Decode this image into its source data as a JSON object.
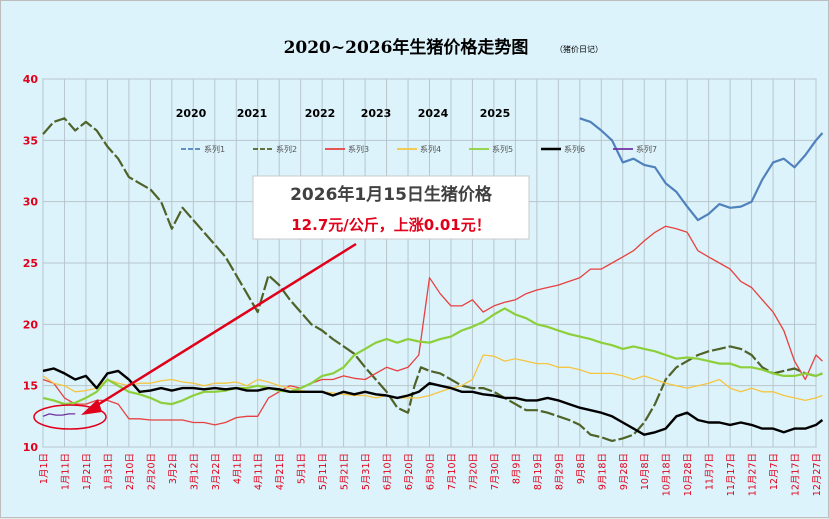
{
  "header": {
    "title": "2020~2026年生猪价格走势图",
    "subtitle": "（猪价日记）"
  },
  "colors": {
    "background": "#dcf3fb",
    "axis_text": "#e0001a",
    "series": [
      "#4f81bd",
      "#4f6228",
      "#e6413f",
      "#f5c542",
      "#8ccf3a",
      "#000000",
      "#7030a0"
    ]
  },
  "year_labels": [
    "2020",
    "2021",
    "2022",
    "2023",
    "2024",
    "2025"
  ],
  "legend": [
    "系列1",
    "系列2",
    "系列3",
    "系列4",
    "系列5",
    "系列6",
    "系列7"
  ],
  "annotation": {
    "line1": "2026年1月15日生猪价格",
    "line2": "12.7元/公斤，上涨0.01元！"
  },
  "chart_data": {
    "type": "line",
    "title": "2020~2026年生猪价格走势图",
    "subtitle": "（猪价日记）",
    "ylim": [
      10,
      40
    ],
    "y_ticks": [
      "10",
      "15",
      "20",
      "25",
      "30",
      "35",
      "40"
    ],
    "x_ticks": [
      "1月1日",
      "1月11日",
      "1月21日",
      "1月31日",
      "2月10日",
      "2月20日",
      "3月2日",
      "3月12日",
      "3月22日",
      "4月1日",
      "4月11日",
      "4月21日",
      "5月1日",
      "5月11日",
      "5月21日",
      "5月31日",
      "6月10日",
      "6月20日",
      "6月30日",
      "7月10日",
      "7月20日",
      "7月30日",
      "8月9日",
      "8月19日",
      "8月29日",
      "9月8日",
      "9月18日",
      "9月28日",
      "10月8日",
      "10月18日",
      "10月28日",
      "11月7日",
      "11月17日",
      "11月27日",
      "12月7日",
      "12月17日",
      "12月27日"
    ],
    "grid": true,
    "legend_position": "top",
    "series": [
      {
        "name": "系列1",
        "year": "2020",
        "dash": true,
        "x": [
          0,
          3,
          6,
          9,
          12,
          15,
          18,
          21,
          24,
          27,
          30,
          33,
          36
        ],
        "values": [
          null,
          null,
          null,
          null,
          null,
          null,
          null,
          null,
          null,
          null,
          null,
          null,
          null
        ]
      },
      {
        "name": "系列1",
        "x": [
          25,
          25.5,
          26,
          26.5,
          27,
          27.5,
          28,
          28.5,
          29,
          29.5,
          30,
          30.5,
          31,
          31.5,
          32,
          32.5,
          33,
          33.5,
          34,
          34.5,
          35,
          35.5,
          36,
          36.3
        ],
        "values": [
          36.8,
          36.5,
          35.8,
          35.0,
          33.2,
          33.5,
          33.0,
          32.8,
          31.5,
          30.8,
          29.6,
          28.5,
          29.0,
          29.8,
          29.5,
          29.6,
          30.0,
          31.8,
          33.2,
          33.5,
          32.8,
          33.8,
          35.0,
          35.6
        ]
      },
      {
        "name": "系列2",
        "x": [
          0,
          0.5,
          1,
          1.5,
          2,
          2.5,
          3,
          3.5,
          4,
          4.5,
          5,
          5.5,
          6,
          6.5,
          7,
          7.5,
          8,
          8.5,
          9,
          9.5,
          10,
          10.5,
          11,
          11.5,
          12,
          12.5,
          13,
          13.5,
          14,
          14.5,
          15,
          15.5,
          16,
          16.5,
          17,
          17.3,
          17.6,
          18,
          18.5,
          19,
          19.5,
          20,
          20.5,
          21,
          21.5,
          22,
          22.5,
          23,
          23.5,
          24,
          24.5,
          25,
          25.5,
          26,
          26.5,
          27,
          27.5,
          28,
          28.5,
          29,
          29.5,
          30,
          30.5,
          31,
          31.5,
          32,
          32.5,
          33,
          33.5,
          34,
          34.5,
          35,
          35.5,
          36,
          36.3
        ],
        "values": [
          35.5,
          36.5,
          36.8,
          35.8,
          36.5,
          35.8,
          34.5,
          33.5,
          32.0,
          31.5,
          31.0,
          30.0,
          27.8,
          29.5,
          28.5,
          27.5,
          26.5,
          25.5,
          24.0,
          22.5,
          21.0,
          24.0,
          23.2,
          22.0,
          21.0,
          20.0,
          19.5,
          18.8,
          18.2,
          17.6,
          16.5,
          15.5,
          14.5,
          13.2,
          12.8,
          15.0,
          16.5,
          16.2,
          16.0,
          15.5,
          15.0,
          14.8,
          14.8,
          14.5,
          14.0,
          13.5,
          13.0,
          13.0,
          12.8,
          12.5,
          12.2,
          11.8,
          11.0,
          10.8,
          10.5,
          10.7,
          11.0,
          12.0,
          13.5,
          15.5,
          16.5,
          17.0,
          17.5,
          17.8,
          18.0,
          18.2,
          18.0,
          17.5,
          16.5,
          16.0,
          16.2,
          16.4,
          16.0,
          15.8,
          16.0
        ]
      },
      {
        "name": "系列3",
        "x": [
          0,
          0.5,
          1,
          1.5,
          2,
          2.5,
          3,
          3.5,
          4,
          4.5,
          5,
          5.5,
          6,
          6.5,
          7,
          7.5,
          8,
          8.5,
          9,
          9.5,
          10,
          10.5,
          11,
          11.5,
          12,
          12.5,
          13,
          13.5,
          14,
          14.5,
          15,
          15.5,
          16,
          16.5,
          17,
          17.5,
          18,
          18.5,
          19,
          19.5,
          20,
          20.5,
          21,
          21.5,
          22,
          22.5,
          23,
          23.5,
          24,
          24.5,
          25,
          25.5,
          26,
          26.5,
          27,
          27.5,
          28,
          28.5,
          29,
          29.5,
          30,
          30.5,
          31,
          31.5,
          32,
          32.5,
          33,
          33.5,
          34,
          34.5,
          35,
          35.5,
          36,
          36.3
        ],
        "values": [
          15.5,
          15.2,
          14.0,
          13.5,
          13.5,
          13.8,
          13.8,
          13.5,
          12.3,
          12.3,
          12.2,
          12.2,
          12.2,
          12.2,
          12.0,
          12.0,
          11.8,
          12.0,
          12.4,
          12.5,
          12.5,
          14.0,
          14.5,
          15.0,
          14.8,
          15.2,
          15.5,
          15.5,
          15.8,
          15.6,
          15.5,
          16.0,
          16.5,
          16.2,
          16.5,
          17.5,
          23.8,
          22.5,
          21.5,
          21.5,
          22.0,
          21.0,
          21.5,
          21.8,
          22.0,
          22.5,
          22.8,
          23.0,
          23.2,
          23.5,
          23.8,
          24.5,
          24.5,
          25.0,
          25.5,
          26.0,
          26.8,
          27.5,
          28.0,
          27.8,
          27.5,
          26.0,
          25.5,
          25.0,
          24.5,
          23.5,
          23.0,
          22.0,
          21.0,
          19.5,
          17.0,
          15.5,
          17.5,
          17.0
        ]
      },
      {
        "name": "系列4",
        "x": [
          0,
          0.5,
          1,
          1.5,
          2,
          2.5,
          3,
          3.5,
          4,
          4.5,
          5,
          5.5,
          6,
          6.5,
          7,
          7.5,
          8,
          8.5,
          9,
          9.5,
          10,
          10.5,
          11,
          11.5,
          12,
          12.5,
          13,
          13.5,
          14,
          14.5,
          15,
          15.5,
          16,
          16.5,
          17,
          17.5,
          18,
          18.5,
          19,
          19.5,
          20,
          20.5,
          21,
          21.5,
          22,
          22.5,
          23,
          23.5,
          24,
          24.5,
          25,
          25.5,
          26,
          26.5,
          27,
          27.5,
          28,
          28.5,
          29,
          29.5,
          30,
          30.5,
          31,
          31.5,
          32,
          32.5,
          33,
          33.5,
          34,
          34.5,
          35,
          35.5,
          36,
          36.3
        ],
        "values": [
          15.8,
          15.2,
          15.0,
          14.5,
          14.6,
          14.8,
          15.5,
          15.2,
          15.0,
          15.2,
          15.2,
          15.4,
          15.5,
          15.3,
          15.2,
          15.0,
          15.2,
          15.2,
          15.3,
          15.0,
          15.5,
          15.3,
          15.0,
          14.8,
          14.6,
          14.5,
          14.5,
          14.4,
          14.3,
          14.2,
          14.2,
          14.0,
          14.2,
          14.0,
          14.0,
          14.0,
          14.2,
          14.5,
          14.8,
          15.0,
          15.5,
          17.5,
          17.4,
          17.0,
          17.2,
          17.0,
          16.8,
          16.8,
          16.5,
          16.5,
          16.3,
          16.0,
          16.0,
          16.0,
          15.8,
          15.5,
          15.8,
          15.5,
          15.2,
          15.0,
          14.8,
          15.0,
          15.2,
          15.5,
          14.8,
          14.5,
          14.8,
          14.5,
          14.5,
          14.2,
          14.0,
          13.8,
          14.0,
          14.2
        ]
      },
      {
        "name": "系列5",
        "x": [
          0,
          0.5,
          1,
          1.5,
          2,
          2.5,
          3,
          3.5,
          4,
          4.5,
          5,
          5.5,
          6,
          6.5,
          7,
          7.5,
          8,
          8.5,
          9,
          9.5,
          10,
          10.5,
          11,
          11.5,
          12,
          12.5,
          13,
          13.5,
          14,
          14.5,
          15,
          15.5,
          16,
          16.5,
          17,
          17.5,
          18,
          18.5,
          19,
          19.5,
          20,
          20.5,
          21,
          21.5,
          22,
          22.5,
          23,
          23.5,
          24,
          24.5,
          25,
          25.5,
          26,
          26.5,
          27,
          27.5,
          28,
          28.5,
          29,
          29.5,
          30,
          30.5,
          31,
          31.5,
          32,
          32.5,
          33,
          33.5,
          34,
          34.5,
          35,
          35.5,
          36,
          36.3
        ],
        "values": [
          14.0,
          13.8,
          13.5,
          13.6,
          14.0,
          14.5,
          15.5,
          15.0,
          14.5,
          14.3,
          14.0,
          13.6,
          13.5,
          13.8,
          14.2,
          14.5,
          14.5,
          14.6,
          14.8,
          14.8,
          15.0,
          14.8,
          14.6,
          14.5,
          14.8,
          15.2,
          15.8,
          16.0,
          16.5,
          17.5,
          18.0,
          18.5,
          18.8,
          18.5,
          18.8,
          18.6,
          18.5,
          18.8,
          19.0,
          19.5,
          19.8,
          20.2,
          20.8,
          21.3,
          20.8,
          20.5,
          20.0,
          19.8,
          19.5,
          19.2,
          19.0,
          18.8,
          18.5,
          18.3,
          18.0,
          18.2,
          18.0,
          17.8,
          17.5,
          17.2,
          17.3,
          17.2,
          17.0,
          16.8,
          16.8,
          16.5,
          16.5,
          16.3,
          16.0,
          15.8,
          15.8,
          16.0,
          15.8,
          16.0
        ]
      },
      {
        "name": "系列6",
        "x": [
          0,
          0.5,
          1,
          1.5,
          2,
          2.5,
          3,
          3.5,
          4,
          4.5,
          5,
          5.5,
          6,
          6.5,
          7,
          7.5,
          8,
          8.5,
          9,
          9.5,
          10,
          10.5,
          11,
          11.5,
          12,
          12.5,
          13,
          13.5,
          14,
          14.5,
          15,
          15.5,
          16,
          16.5,
          17,
          17.5,
          18,
          18.5,
          19,
          19.5,
          20,
          20.5,
          21,
          21.5,
          22,
          22.5,
          23,
          23.5,
          24,
          24.5,
          25,
          25.5,
          26,
          26.5,
          27,
          27.5,
          28,
          28.5,
          29,
          29.5,
          30,
          30.5,
          31,
          31.5,
          32,
          32.5,
          33,
          33.5,
          34,
          34.5,
          35,
          35.5,
          36,
          36.3
        ],
        "values": [
          16.2,
          16.4,
          16.0,
          15.5,
          15.8,
          14.8,
          16.0,
          16.2,
          15.5,
          14.5,
          14.6,
          14.8,
          14.6,
          14.8,
          14.8,
          14.7,
          14.8,
          14.7,
          14.8,
          14.6,
          14.6,
          14.8,
          14.7,
          14.5,
          14.5,
          14.5,
          14.5,
          14.2,
          14.5,
          14.3,
          14.5,
          14.3,
          14.2,
          14.0,
          14.2,
          14.5,
          15.2,
          15.0,
          14.8,
          14.5,
          14.5,
          14.3,
          14.2,
          14.0,
          14.0,
          13.8,
          13.8,
          14.0,
          13.8,
          13.5,
          13.2,
          13.0,
          12.8,
          12.5,
          12.0,
          11.5,
          11.0,
          11.2,
          11.5,
          12.5,
          12.8,
          12.2,
          12.0,
          12.0,
          11.8,
          12.0,
          11.8,
          11.5,
          11.5,
          11.2,
          11.5,
          11.5,
          11.8,
          12.2
        ]
      },
      {
        "name": "系列7",
        "x": [
          0,
          0.3,
          0.6,
          0.9,
          1.2,
          1.5
        ],
        "values": [
          12.5,
          12.7,
          12.6,
          12.6,
          12.7,
          12.7
        ]
      }
    ]
  }
}
